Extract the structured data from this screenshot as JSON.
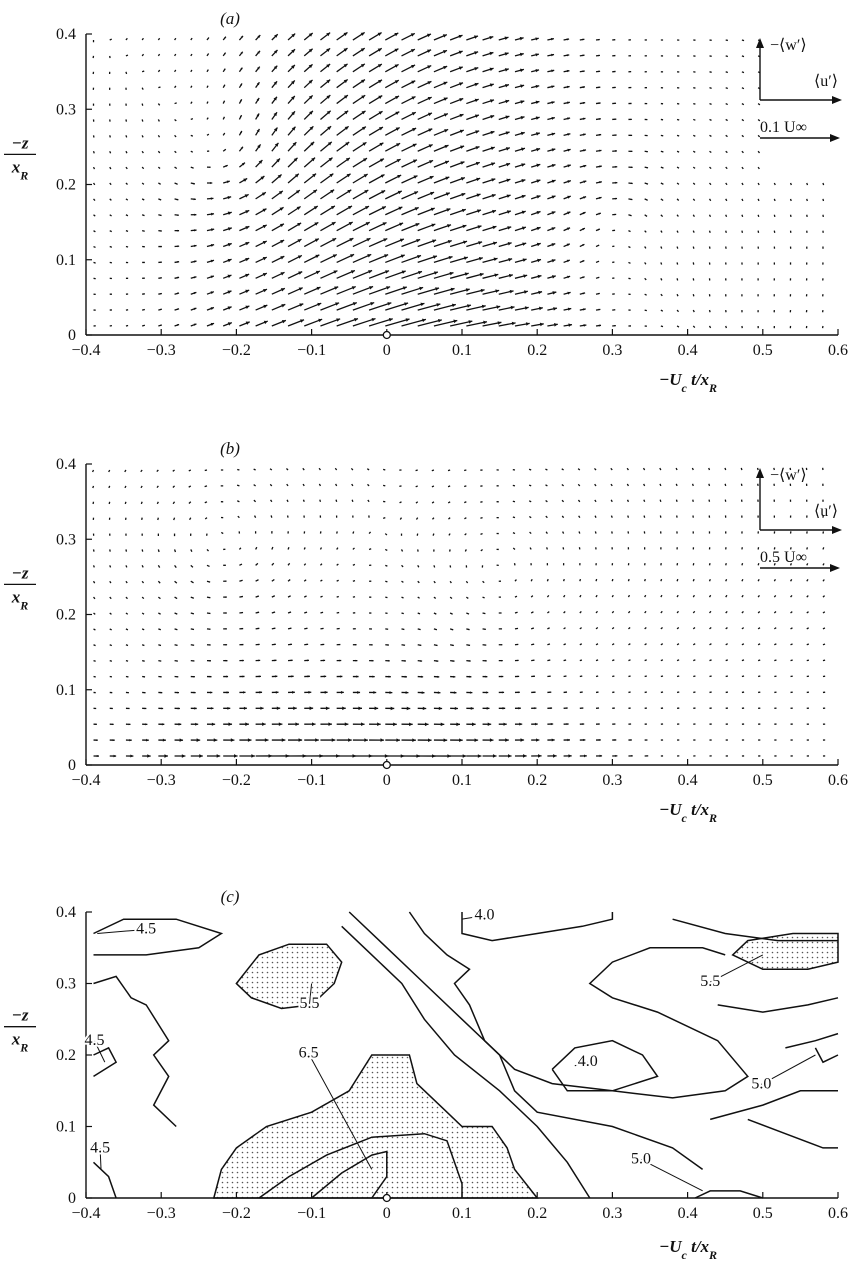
{
  "chart_data": [
    {
      "type": "quiver",
      "panel_label": "(a)",
      "xlabel": "−U_c t/x_R",
      "ylabel": "−z/x_R",
      "xlim": [
        -0.4,
        0.6
      ],
      "ylim": [
        0,
        0.4
      ],
      "xticks": [
        "−0.4",
        "−0.3",
        "−0.2",
        "−0.1",
        "0",
        "0.1",
        "0.2",
        "0.3",
        "0.4",
        "0.5",
        "0.6"
      ],
      "yticks": [
        "0",
        "0.1",
        "0.2",
        "0.3",
        "0.4"
      ],
      "legend": {
        "vertical_label": "−⟨w′⟩",
        "horizontal_label": "⟨u′⟩",
        "scale_label": "0.1 U∞",
        "scale_value": 0.1
      }
    },
    {
      "type": "quiver",
      "panel_label": "(b)",
      "xlabel": "−U_c t/x_R",
      "ylabel": "−z/x_R",
      "xlim": [
        -0.4,
        0.6
      ],
      "ylim": [
        0,
        0.4
      ],
      "xticks": [
        "−0.4",
        "−0.3",
        "−0.2",
        "−0.1",
        "0",
        "0.1",
        "0.2",
        "0.3",
        "0.4",
        "0.5",
        "0.6"
      ],
      "yticks": [
        "0",
        "0.1",
        "0.2",
        "0.3",
        "0.4"
      ],
      "legend": {
        "vertical_label": "−⟨w′⟩",
        "horizontal_label": "⟨u′⟩",
        "scale_label": "0.5 U∞",
        "scale_value": 0.5
      }
    },
    {
      "type": "contour",
      "panel_label": "(c)",
      "xlabel": "−U_c t/x_R",
      "ylabel": "−z/x_R",
      "xlim": [
        -0.4,
        0.6
      ],
      "ylim": [
        0,
        0.4
      ],
      "xticks": [
        "−0.4",
        "−0.3",
        "−0.2",
        "−0.1",
        "0",
        "0.1",
        "0.2",
        "0.3",
        "0.4",
        "0.5",
        "0.6"
      ],
      "yticks": [
        "0",
        "0.1",
        "0.2",
        "0.3",
        "0.4"
      ],
      "contour_labels": [
        {
          "text": "4.5",
          "x": -0.36,
          "y": 0.37
        },
        {
          "text": "4.0",
          "x": 0.13,
          "y": 0.37
        },
        {
          "text": "5.5",
          "x": -0.14,
          "y": 0.28
        },
        {
          "text": "5.5",
          "x": 0.47,
          "y": 0.33
        },
        {
          "text": "4.5",
          "x": -0.37,
          "y": 0.2
        },
        {
          "text": "6.5",
          "x": -0.08,
          "y": 0.16
        },
        {
          "text": "4.0",
          "x": 0.23,
          "y": 0.19
        },
        {
          "text": "5.0",
          "x": 0.53,
          "y": 0.17
        },
        {
          "text": "4.5",
          "x": -0.36,
          "y": 0.05
        },
        {
          "text": "5.0",
          "x": 0.37,
          "y": 0.04
        }
      ]
    }
  ]
}
